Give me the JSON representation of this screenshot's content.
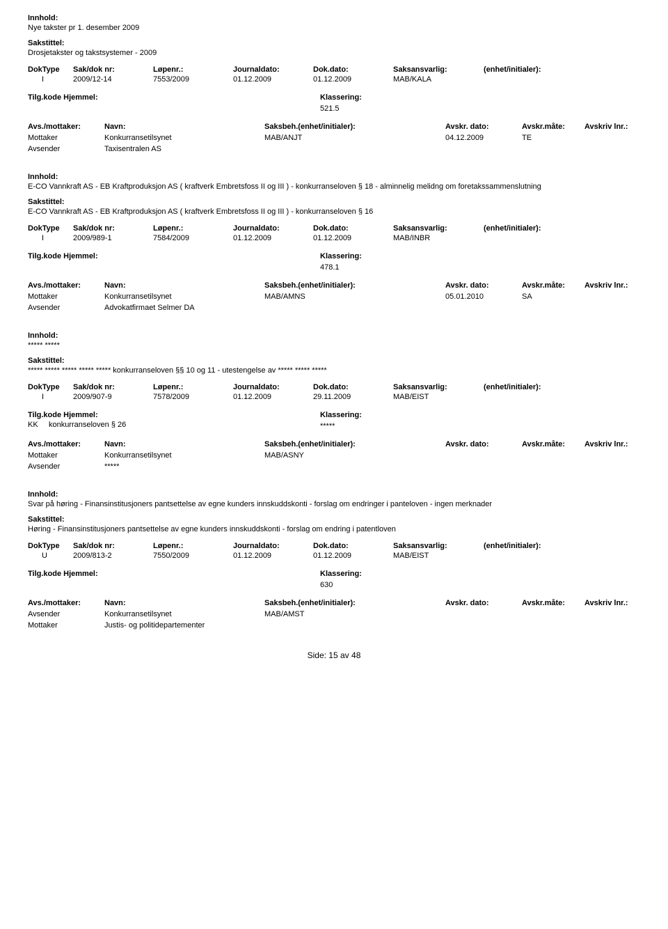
{
  "labels": {
    "innhold": "Innhold:",
    "sakstittel": "Sakstittel:",
    "doktype": "DokType",
    "sakdok": "Sak/dok nr:",
    "lopenr": "Løpenr.:",
    "journaldato": "Journaldato:",
    "dokdato": "Dok.dato:",
    "saksansvarlig": "Saksansvarlig:",
    "enhet": "(enhet/initialer):",
    "tilgkode": "Tilg.kode Hjemmel:",
    "klassering": "Klassering:",
    "avsmottaker": "Avs./mottaker:",
    "navn": "Navn:",
    "saksbeh": "Saksbeh.(enhet/initialer):",
    "avskrdato": "Avskr. dato:",
    "avskrmate": "Avskr.måte:",
    "avskrivlnr": "Avskriv lnr.:"
  },
  "records": [
    {
      "innhold": "Nye takster pr 1. desember 2009",
      "sakstittel": "Drosjetakster og takstsystemer - 2009",
      "doktype": "I",
      "sakdok": "2009/12-14",
      "lopenr": "7553/2009",
      "journaldato": "01.12.2009",
      "dokdato": "01.12.2009",
      "saksansvarlig": "MAB/KALA",
      "tilg_hjemmel": "",
      "klassering": "521.5",
      "parties": [
        {
          "role": "Mottaker",
          "name": "Konkurransetilsynet",
          "saksbeh": "MAB/ANJT",
          "avskr_dato": "04.12.2009",
          "avskr_mate": "TE"
        },
        {
          "role": "Avsender",
          "name": "Taxisentralen AS",
          "saksbeh": "",
          "avskr_dato": "",
          "avskr_mate": ""
        }
      ]
    },
    {
      "innhold": "E-CO Vannkraft AS - EB Kraftproduksjon AS ( kraftverk Embretsfoss II og III ) - konkurranseloven § 18 - alminnelig melidng om foretakssammenslutning",
      "sakstittel": "E-CO Vannkraft AS - EB Kraftproduksjon AS ( kraftverk Embretsfoss II og III ) - konkurranseloven § 16",
      "doktype": "I",
      "sakdok": "2009/989-1",
      "lopenr": "7584/2009",
      "journaldato": "01.12.2009",
      "dokdato": "01.12.2009",
      "saksansvarlig": "MAB/INBR",
      "tilg_hjemmel": "",
      "klassering": "478.1",
      "parties": [
        {
          "role": "Mottaker",
          "name": "Konkurransetilsynet",
          "saksbeh": "MAB/AMNS",
          "avskr_dato": "05.01.2010",
          "avskr_mate": "SA"
        },
        {
          "role": "Avsender",
          "name": "Advokatfirmaet Selmer DA",
          "saksbeh": "",
          "avskr_dato": "",
          "avskr_mate": ""
        }
      ]
    },
    {
      "innhold": "***** *****",
      "sakstittel": "***** ***** ***** ***** ***** konkurranseloven §§ 10 og 11 - utestengelse av ***** ***** *****",
      "doktype": "I",
      "sakdok": "2009/907-9",
      "lopenr": "7578/2009",
      "journaldato": "01.12.2009",
      "dokdato": "29.11.2009",
      "saksansvarlig": "MAB/EIST",
      "tilg_hjemmel": "KK     konkurranseloven § 26",
      "klassering": "*****",
      "parties": [
        {
          "role": "Mottaker",
          "name": "Konkurransetilsynet",
          "saksbeh": "MAB/ASNY",
          "avskr_dato": "",
          "avskr_mate": ""
        },
        {
          "role": "Avsender",
          "name": "*****",
          "saksbeh": "",
          "avskr_dato": "",
          "avskr_mate": ""
        }
      ]
    },
    {
      "innhold": "Svar på høring - Finansinstitusjoners pantsettelse av egne kunders innskuddskonti - forslag om endringer i panteloven - ingen merknader",
      "sakstittel": "Høring - Finansinstitusjoners pantsettelse av egne kunders innskuddskonti - forslag om endring i patentloven",
      "doktype": "U",
      "sakdok": "2009/813-2",
      "lopenr": "7550/2009",
      "journaldato": "01.12.2009",
      "dokdato": "01.12.2009",
      "saksansvarlig": "MAB/EIST",
      "tilg_hjemmel": "",
      "klassering": "630",
      "parties": [
        {
          "role": "Avsender",
          "name": "Konkurransetilsynet",
          "saksbeh": "MAB/AMST",
          "avskr_dato": "",
          "avskr_mate": ""
        },
        {
          "role": "Mottaker",
          "name": "Justis- og politidepartementer",
          "saksbeh": "",
          "avskr_dato": "",
          "avskr_mate": ""
        }
      ]
    }
  ],
  "footer": {
    "side_label": "Side:",
    "page": "15",
    "av": "av",
    "total": "48"
  }
}
